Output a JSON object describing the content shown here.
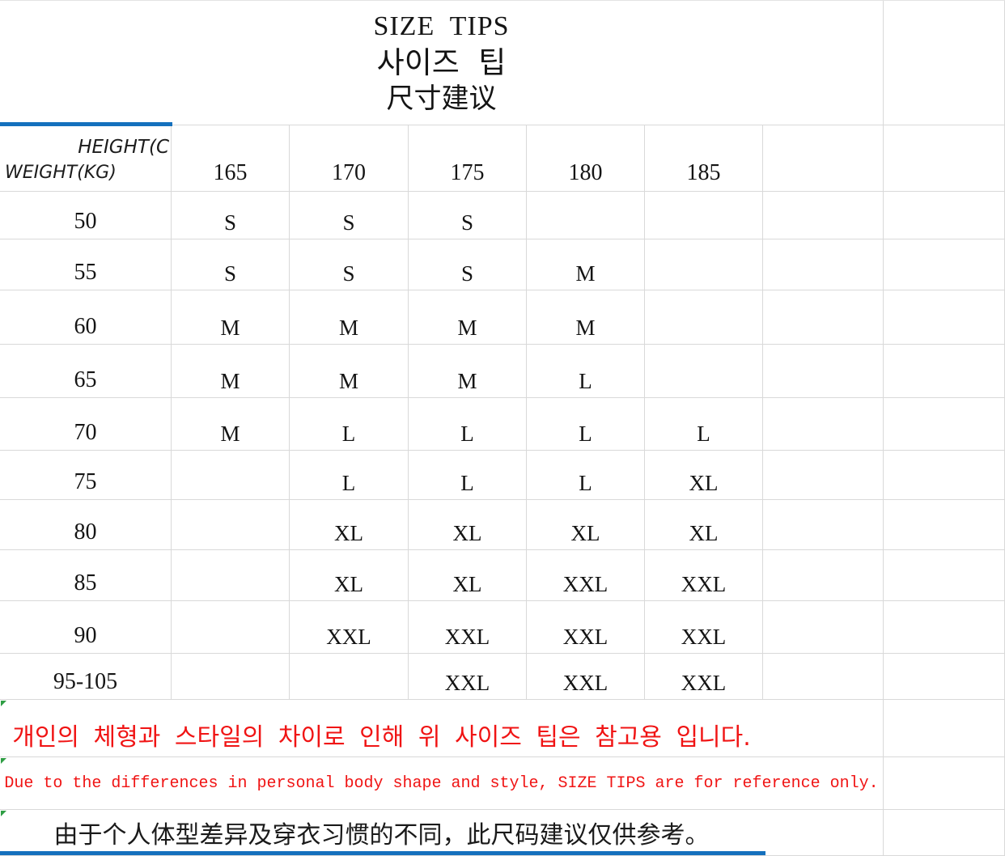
{
  "title": {
    "line1": "SIZE  TIPS",
    "line2": "사이즈  팁",
    "line3": "尺寸建议"
  },
  "table": {
    "corner": {
      "top_label": "HEIGHT(C",
      "bottom_label": "WEIGHT(KG)"
    },
    "height_headers": [
      "165",
      "170",
      "175",
      "180",
      "185"
    ],
    "rows": [
      {
        "weight": "50",
        "sizes": [
          "S",
          "S",
          "S",
          "",
          ""
        ]
      },
      {
        "weight": "55",
        "sizes": [
          "S",
          "S",
          "S",
          "M",
          ""
        ]
      },
      {
        "weight": "60",
        "sizes": [
          "M",
          "M",
          "M",
          "M",
          ""
        ]
      },
      {
        "weight": "65",
        "sizes": [
          "M",
          "M",
          "M",
          "L",
          ""
        ]
      },
      {
        "weight": "70",
        "sizes": [
          "M",
          "L",
          "L",
          "L",
          "L"
        ]
      },
      {
        "weight": "75",
        "sizes": [
          "",
          "L",
          "L",
          "L",
          "XL"
        ]
      },
      {
        "weight": "80",
        "sizes": [
          "",
          "XL",
          "XL",
          "XL",
          "XL"
        ]
      },
      {
        "weight": "85",
        "sizes": [
          "",
          "XL",
          "XL",
          "XXL",
          "XXL"
        ]
      },
      {
        "weight": "90",
        "sizes": [
          "",
          "XXL",
          "XXL",
          "XXL",
          "XXL"
        ]
      },
      {
        "weight": "95-105",
        "sizes": [
          "",
          "",
          "XXL",
          "XXL",
          "XXL"
        ]
      }
    ]
  },
  "notes": {
    "korean": "개인의 체형과 스타일의 차이로 인해 위 사이즈 팁은 참고용 입니다.",
    "english": "Due to the differences in personal body shape and style, SIZE TIPS are for reference only.",
    "chinese": "由于个人体型差异及穿衣习惯的不同，此尺码建议仅供参考。"
  },
  "colors": {
    "accent_blue": "#1470bd",
    "note_red": "#f01414",
    "marker_green": "#2f9e44",
    "gridline": "#d9d9d9"
  }
}
